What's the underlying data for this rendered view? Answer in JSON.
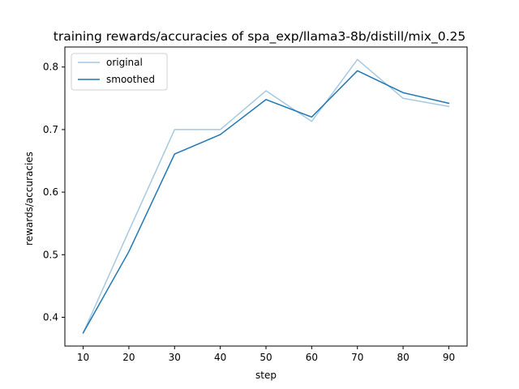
{
  "chart_data": {
    "type": "line",
    "title": "training rewards/accuracies of spa_exp/llama3-8b/distill/mix_0.25",
    "xlabel": "step",
    "ylabel": "rewards/accuracies",
    "x": [
      10,
      20,
      30,
      40,
      50,
      60,
      70,
      80,
      90
    ],
    "xlim": [
      6,
      94
    ],
    "ylim": [
      0.354,
      0.832
    ],
    "xticks": [
      10,
      20,
      30,
      40,
      50,
      60,
      70,
      80,
      90
    ],
    "yticks": [
      0.4,
      0.5,
      0.6,
      0.7,
      0.8
    ],
    "ytick_labels": [
      "0.4",
      "0.5",
      "0.6",
      "0.7",
      "0.8"
    ],
    "grid": false,
    "legend_position": "upper-left",
    "series": [
      {
        "name": "original",
        "color": "#a6c8e1",
        "values": [
          0.375,
          0.538,
          0.7,
          0.7,
          0.762,
          0.713,
          0.812,
          0.75,
          0.737
        ]
      },
      {
        "name": "smoothed",
        "color": "#1f77b4",
        "values": [
          0.375,
          0.505,
          0.661,
          0.692,
          0.748,
          0.72,
          0.794,
          0.759,
          0.742
        ]
      }
    ]
  }
}
